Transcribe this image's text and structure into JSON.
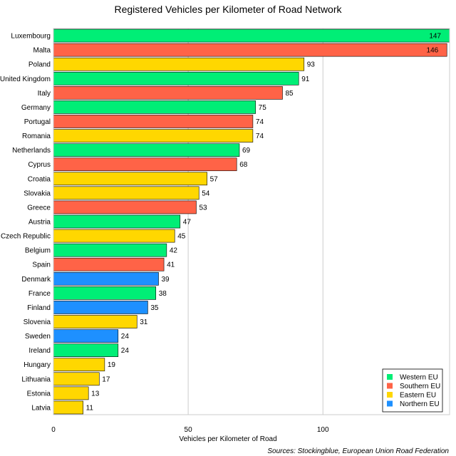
{
  "chart_data": {
    "type": "bar",
    "orientation": "horizontal",
    "title": "Registered Vehicles per Kilometer of Road Network",
    "xlabel": "Vehicles per Kilometer of Road",
    "ylabel": "",
    "xlim": [
      0,
      147
    ],
    "xticks": [
      0,
      50,
      100
    ],
    "grid": true,
    "source": "Sources: Stockingblue, European Union Road Federation",
    "legend": {
      "position": "bottom-right",
      "entries": [
        {
          "name": "Western EU",
          "color": "#00ee76"
        },
        {
          "name": "Southern EU",
          "color": "#ff6347"
        },
        {
          "name": "Eastern EU",
          "color": "#ffd700"
        },
        {
          "name": "Northern EU",
          "color": "#1e90ff"
        }
      ]
    },
    "categories": [
      "Luxembourg",
      "Malta",
      "Poland",
      "United Kingdom",
      "Italy",
      "Germany",
      "Portugal",
      "Romania",
      "Netherlands",
      "Cyprus",
      "Croatia",
      "Slovakia",
      "Greece",
      "Austria",
      "Czech Republic",
      "Belgium",
      "Spain",
      "Denmark",
      "France",
      "Finland",
      "Slovenia",
      "Sweden",
      "Ireland",
      "Hungary",
      "Lithuania",
      "Estonia",
      "Latvia"
    ],
    "values": [
      147,
      146,
      93,
      91,
      85,
      75,
      74,
      74,
      69,
      68,
      57,
      54,
      53,
      47,
      45,
      42,
      41,
      39,
      38,
      35,
      31,
      24,
      24,
      19,
      17,
      13,
      11
    ],
    "groups": [
      "Western EU",
      "Southern EU",
      "Eastern EU",
      "Western EU",
      "Southern EU",
      "Western EU",
      "Southern EU",
      "Eastern EU",
      "Western EU",
      "Southern EU",
      "Eastern EU",
      "Eastern EU",
      "Southern EU",
      "Western EU",
      "Eastern EU",
      "Western EU",
      "Southern EU",
      "Northern EU",
      "Western EU",
      "Northern EU",
      "Eastern EU",
      "Northern EU",
      "Western EU",
      "Eastern EU",
      "Eastern EU",
      "Eastern EU",
      "Eastern EU"
    ]
  }
}
